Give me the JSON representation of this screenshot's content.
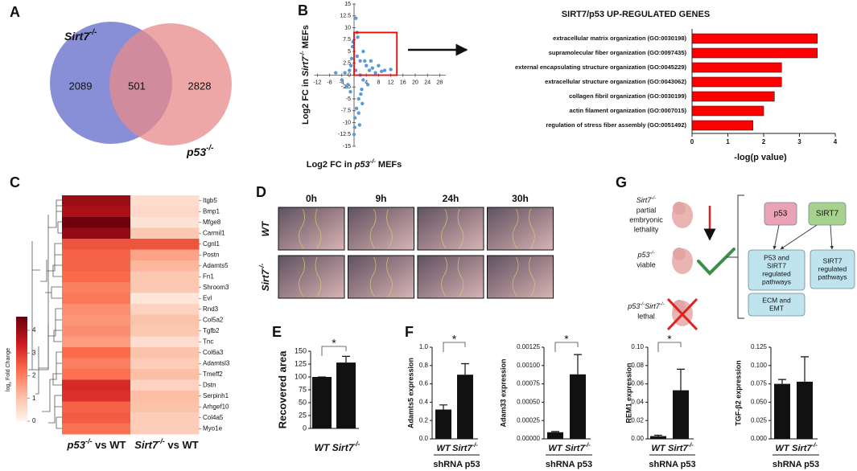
{
  "panel_labels": [
    "A",
    "B",
    "C",
    "D",
    "E",
    "F",
    "G"
  ],
  "venn": {
    "sets": [
      {
        "name": "Sirt7",
        "sup": "-/-",
        "color": "#7b83d1"
      },
      {
        "name": "p53",
        "sup": "-/-",
        "color": "#e88a8a"
      }
    ],
    "counts": [
      2089,
      501,
      2828
    ]
  },
  "chart_data": [
    {
      "type": "scatter",
      "xlabel": {
        "prefix": "Log2 FC in ",
        "gene": "p53",
        "sup": "-/-",
        "suffix": " MEFs"
      },
      "ylabel": {
        "prefix": "Log2 FC in ",
        "gene": "Sirt7",
        "sup": "-/-",
        "suffix": " MEFs"
      },
      "x": [
        -1,
        0.5,
        2,
        3,
        -2,
        1,
        4,
        5,
        -3,
        2.5,
        1.5,
        -0.5,
        6,
        7,
        3.5,
        -4,
        0.8,
        2.2,
        4.5,
        -1.5,
        1.2,
        3,
        5.5,
        8,
        10,
        -6,
        -2.5,
        0.3,
        1.8,
        2.7,
        -0.8,
        0.6,
        1,
        -1.2,
        0,
        1.5,
        -0.3,
        0.2,
        2,
        9,
        12
      ],
      "y": [
        2,
        1,
        3,
        -1,
        -2,
        4,
        2,
        1,
        0.5,
        -3,
        -5,
        6,
        1.5,
        0.5,
        3,
        -1,
        -7,
        -4,
        -2,
        1,
        8,
        5,
        3,
        2,
        1,
        0.5,
        -2.5,
        -9,
        -10.5,
        -6,
        3.5,
        12,
        9,
        -3.5,
        -12.5,
        -8,
        7,
        -11,
        0,
        0.8,
        1.2
      ],
      "color": "#5b9bd5",
      "xlim": [
        -13,
        30
      ],
      "ylim": [
        -15,
        15
      ],
      "xticks": [
        -12,
        -8,
        -4,
        4,
        8,
        12,
        16,
        20,
        24,
        28
      ],
      "yticks": [
        15,
        12.5,
        10,
        7.5,
        5,
        2.5,
        0,
        -2.5,
        -5,
        -7.5,
        -10,
        -12.5,
        -15
      ],
      "highlight": {
        "x": [
          0,
          14
        ],
        "y": [
          0,
          9
        ],
        "color": "#ff0000"
      }
    },
    {
      "type": "hbar",
      "title": "SIRT7/p53 UP-REGULATED GENES",
      "categories": [
        "extracellular matrix organization (GO:0030198)",
        "supramolecular fiber organization (GO:0097435)",
        "external encapsulating structure organization (GO:0045229)",
        "extracellular structure organization (GO:0043062)",
        "collagen fibril organization (GO:0030199)",
        "actin filament organization (GO:0007015)",
        "regulation of stress fiber assembly (GO:0051492)"
      ],
      "values": [
        3.5,
        3.5,
        2.5,
        2.5,
        2.3,
        2.0,
        1.7
      ],
      "color": "#ff0000",
      "xlim": [
        0,
        4
      ],
      "xticks": [
        0,
        1,
        2,
        3,
        4
      ],
      "xlabel": "-log(p value)"
    },
    {
      "type": "heatmap",
      "rows": [
        "Itgb5",
        "Bmp1",
        "Mfge8",
        "Carmil1",
        "Cgnl1",
        "Postn",
        "Adamts5",
        "Fn1",
        "Shroom3",
        "Evl",
        "Rnd3",
        "Col5a2",
        "Tgfb2",
        "Tnc",
        "Col6a3",
        "Adamtsl3",
        "Tmeff2",
        "Dstn",
        "Serpinh1",
        "Arhgef10",
        "Col4a5",
        "Myo1e"
      ],
      "columns": [
        {
          "gene": "p53",
          "sup": "-/-",
          "suffix": " vs WT"
        },
        {
          "gene": "Sirt7",
          "sup": "-/-",
          "suffix": " vs WT"
        }
      ],
      "matrix": [
        [
          4.0,
          0.5
        ],
        [
          3.8,
          0.6
        ],
        [
          4.5,
          0.4
        ],
        [
          4.1,
          0.9
        ],
        [
          2.6,
          2.6
        ],
        [
          2.4,
          1.5
        ],
        [
          2.4,
          1.2
        ],
        [
          2.3,
          0.9
        ],
        [
          2.0,
          0.9
        ],
        [
          2.1,
          0.3
        ],
        [
          1.8,
          0.7
        ],
        [
          1.7,
          1.0
        ],
        [
          1.8,
          0.9
        ],
        [
          1.6,
          0.5
        ],
        [
          2.3,
          1.0
        ],
        [
          2.0,
          0.8
        ],
        [
          2.2,
          1.1
        ],
        [
          3.2,
          0.7
        ],
        [
          3.1,
          1.1
        ],
        [
          2.4,
          1.0
        ],
        [
          2.5,
          0.8
        ],
        [
          2.2,
          0.8
        ]
      ],
      "clim": [
        0,
        4.6
      ],
      "cbticks": [
        0,
        1,
        2,
        3,
        4
      ],
      "colormap": [
        "#fff5f0",
        "#fcbba1",
        "#fb6a4a",
        "#cb181d",
        "#67000d"
      ],
      "colorbar_label": {
        "prefix": "log",
        "sub": "2",
        "suffix": " Fold Change"
      }
    },
    {
      "type": "bar",
      "ylabel": "Recovered area",
      "categories": [
        "WT",
        "Sirt7"
      ],
      "category_sup": [
        null,
        "-/-"
      ],
      "values": [
        100,
        128
      ],
      "errors": [
        0,
        12
      ],
      "color": "#111111",
      "ylim": [
        0,
        150
      ],
      "yticks": [
        0,
        25,
        50,
        75,
        100,
        125,
        150
      ],
      "annotation": "*"
    },
    {
      "type": "bar",
      "ylabel": "Adamts5 expression",
      "group_label": "shRNA p53",
      "categories": [
        "WT",
        "Sirt7"
      ],
      "category_sup": [
        null,
        "-/-"
      ],
      "values": [
        0.32,
        0.7
      ],
      "errors": [
        0.05,
        0.12
      ],
      "color": "#111111",
      "ylim": [
        0,
        1
      ],
      "yticks": [
        {
          "value": 0,
          "label": "0.0"
        },
        0.2,
        0.4,
        0.6,
        0.8,
        {
          "value": 1,
          "label": "1.0"
        }
      ],
      "annotation": "*"
    },
    {
      "type": "bar",
      "ylabel": "Adam33 expression",
      "group_label": "shRNA p53",
      "categories": [
        "WT",
        "Sirt7"
      ],
      "category_sup": [
        null,
        "-/-"
      ],
      "values": [
        9e-05,
        0.00088
      ],
      "errors": [
        1e-05,
        0.00027
      ],
      "color": "#111111",
      "ylim": [
        0,
        0.00125
      ],
      "yticks": [
        {
          "value": 0,
          "label": "0.00000"
        },
        {
          "value": 0.00025,
          "label": "0.00025"
        },
        {
          "value": 0.0005,
          "label": "0.00050"
        },
        {
          "value": 0.00075,
          "label": "0.00075"
        },
        {
          "value": 0.001,
          "label": "0.00100"
        },
        {
          "value": 0.00125,
          "label": "0.00125"
        }
      ],
      "annotation": "*"
    },
    {
      "type": "bar",
      "ylabel": "REM1 expression",
      "group_label": "shRNA p53",
      "categories": [
        "WT",
        "Sirt7"
      ],
      "category_sup": [
        null,
        "-/-"
      ],
      "values": [
        0.003,
        0.053
      ],
      "errors": [
        0.001,
        0.023
      ],
      "color": "#111111",
      "ylim": [
        0,
        0.1
      ],
      "yticks": [
        {
          "value": 0,
          "label": "0.00"
        },
        {
          "value": 0.02,
          "label": "0.02"
        },
        {
          "value": 0.04,
          "label": "0.04"
        },
        {
          "value": 0.06,
          "label": "0.06"
        },
        {
          "value": 0.08,
          "label": "0.08"
        },
        {
          "value": 0.1,
          "label": "0.10"
        }
      ],
      "annotation": "*"
    },
    {
      "type": "bar",
      "ylabel": "TGF-β2 expression",
      "group_label": "shRNA p53",
      "categories": [
        "WT",
        "Sirt7"
      ],
      "category_sup": [
        null,
        "-/-"
      ],
      "values": [
        0.075,
        0.078
      ],
      "errors": [
        0.006,
        0.034
      ],
      "color": "#111111",
      "ylim": [
        0,
        0.125
      ],
      "yticks": [
        {
          "value": 0,
          "label": "0.000"
        },
        {
          "value": 0.025,
          "label": "0.025"
        },
        {
          "value": 0.05,
          "label": "0.050"
        },
        {
          "value": 0.075,
          "label": "0.075"
        },
        {
          "value": 0.1,
          "label": "0.100"
        },
        {
          "value": 0.125,
          "label": "0.125"
        }
      ]
    }
  ],
  "wound": {
    "times": [
      "0h",
      "9h",
      "24h",
      "30h"
    ],
    "rows": [
      {
        "name": "WT",
        "sup": null
      },
      {
        "name": "Sirt7",
        "sup": "-/-"
      }
    ]
  },
  "diagram": {
    "phenotypes": [
      {
        "genes": [
          {
            "name": "Sirt7",
            "sup": "-/-"
          }
        ],
        "lines": [
          "partial",
          "embryonic",
          "lethality"
        ]
      },
      {
        "genes": [
          {
            "name": "p53",
            "sup": "-/-"
          }
        ],
        "lines": [
          "viable"
        ]
      },
      {
        "genes": [
          {
            "name": "p53",
            "sup": "-/-"
          },
          {
            "name": "Sirt7",
            "sup": "-/-"
          }
        ],
        "lines": [
          "lethal"
        ]
      }
    ],
    "boxes": [
      {
        "label": [
          "p53"
        ],
        "color": "#eba2b6"
      },
      {
        "label": [
          "SIRT7"
        ],
        "color": "#a9d18e"
      },
      {
        "label": [
          "P53 and",
          "SIRT7",
          "regulated",
          "pathways"
        ],
        "color": "#bfe4ee"
      },
      {
        "label": [
          "SIRT7",
          "regulated",
          "pathways"
        ],
        "color": "#bfe4ee"
      },
      {
        "label": [
          "ECM and",
          "EMT"
        ],
        "color": "#bfe4ee"
      }
    ]
  }
}
